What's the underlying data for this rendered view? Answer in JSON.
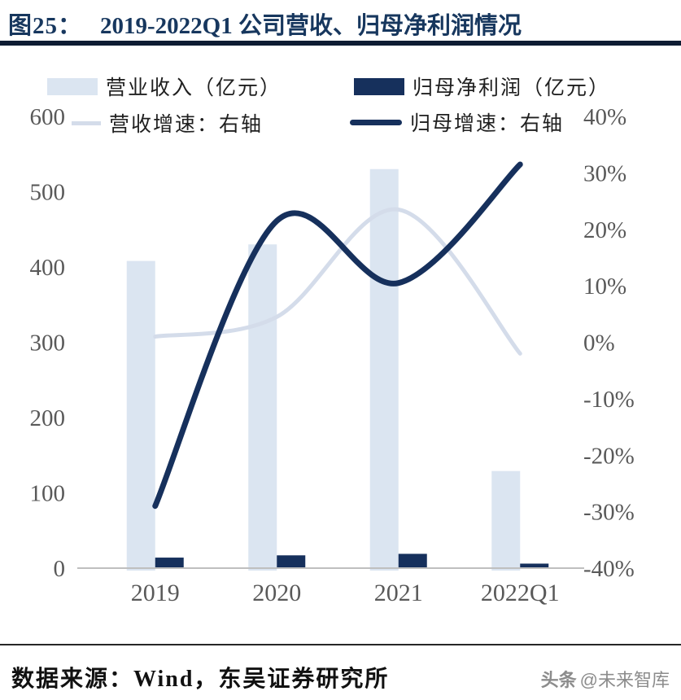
{
  "title": {
    "prefix": "图25：",
    "text": "2019-2022Q1 公司营收、归母净利润情况"
  },
  "colors": {
    "navy": "#16305c",
    "light_blue_bar": "#dbe5f1",
    "light_blue_line": "#d4dcea",
    "axis_line": "#bfbfbf",
    "tick_text": "#595959",
    "title_navy": "#17375e"
  },
  "legend": [
    {
      "key": "revenue",
      "type": "bar",
      "color": "#dbe5f1",
      "label": "营业收入（亿元）"
    },
    {
      "key": "net_profit",
      "type": "bar",
      "color": "#16305c",
      "label": "归母净利润（亿元）"
    },
    {
      "key": "revenue_growth",
      "type": "line",
      "color": "#d4dcea",
      "label": "营收增速：右轴"
    },
    {
      "key": "profit_growth",
      "type": "line",
      "color": "#16305c",
      "label": "归母增速：右轴"
    }
  ],
  "chart_data": {
    "type": "bar",
    "subtype": "combo bar+line, dual axis",
    "categories": [
      "2019",
      "2020",
      "2021",
      "2022Q1"
    ],
    "series": [
      {
        "key": "revenue",
        "name": "营业收入（亿元）",
        "type": "bar",
        "axis": "left",
        "color": "#dbe5f1",
        "values": [
          408,
          430,
          530,
          129
        ]
      },
      {
        "key": "net_profit",
        "name": "归母净利润（亿元）",
        "type": "bar",
        "axis": "left",
        "color": "#16305c",
        "values": [
          14,
          17,
          19,
          6
        ]
      },
      {
        "key": "revenue_growth",
        "name": "营收增速：右轴",
        "type": "line",
        "axis": "right",
        "color": "#d4dcea",
        "values": [
          1,
          4.5,
          23.5,
          -2
        ]
      },
      {
        "key": "profit_growth",
        "name": "归母增速：右轴",
        "type": "line",
        "axis": "right",
        "color": "#16305c",
        "values": [
          -29,
          21.5,
          10.5,
          31.5
        ]
      }
    ],
    "left_axis": {
      "min": 0,
      "max": 600,
      "ticks": [
        "600",
        "500",
        "400",
        "300",
        "200",
        "100",
        "0"
      ]
    },
    "right_axis": {
      "min": -40,
      "max": 40,
      "ticks": [
        "40%",
        "30%",
        "20%",
        "10%",
        "0%",
        "-10%",
        "-20%",
        "-30%",
        "-40%"
      ],
      "unit": "%"
    },
    "grid": false,
    "legend_position": "top"
  },
  "footer": {
    "source": "数据来源：Wind，东吴证券研究所",
    "watermark_logo": "头条",
    "watermark_handle": "@未来智库"
  }
}
